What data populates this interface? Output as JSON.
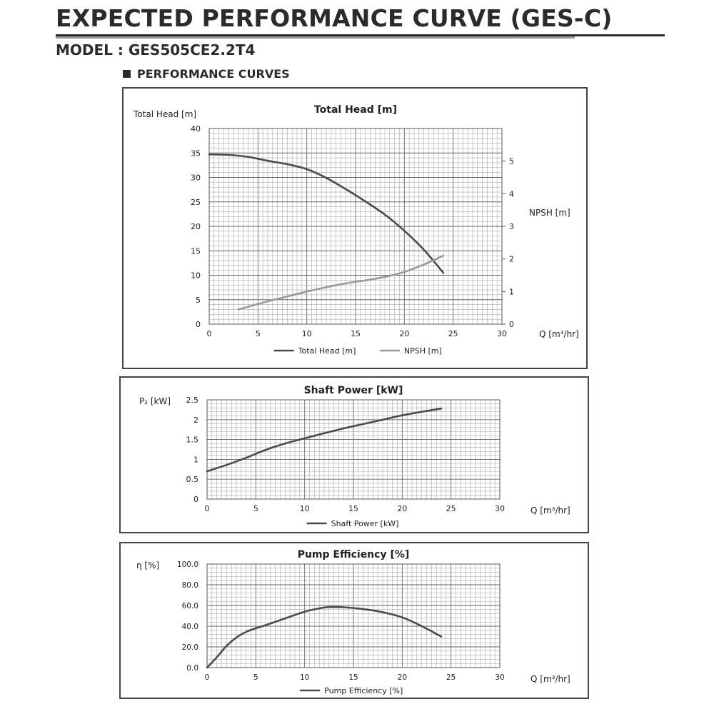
{
  "header": {
    "title": "EXPECTED PERFORMANCE CURVE (GES-C)",
    "model": "MODEL : GES505CE2.2T4",
    "section": "PERFORMANCE CURVES"
  },
  "colors": {
    "primary_curve": "#4a4a4a",
    "secondary_curve": "#999999",
    "grid": "#8a8a8a",
    "border": "#444444"
  },
  "chart_data": [
    {
      "type": "line",
      "title": "Total Head [m]",
      "ylabel": "Total Head [m]",
      "y2label": "NPSH [m]",
      "xlabel": "Q [m³/hr]",
      "xlim": [
        0,
        30
      ],
      "ylim": [
        0,
        40
      ],
      "y2lim": [
        0,
        6
      ],
      "x_ticks": [
        "0",
        "5",
        "10",
        "15",
        "20",
        "25",
        "30"
      ],
      "y_ticks": [
        "0",
        "5",
        "10",
        "15",
        "20",
        "25",
        "30",
        "35",
        "40"
      ],
      "y2_ticks": [
        "0",
        "1",
        "2",
        "3",
        "4",
        "5"
      ],
      "grid": true,
      "legend": "bottom-center",
      "series": [
        {
          "name": "Total Head [m]",
          "axis": "left",
          "color": "#4a4a4a",
          "points": [
            [
              0,
              34.7
            ],
            [
              2,
              34.6
            ],
            [
              4,
              34.2
            ],
            [
              6,
              33.4
            ],
            [
              8,
              32.7
            ],
            [
              10,
              31.7
            ],
            [
              12,
              29.9
            ],
            [
              14,
              27.6
            ],
            [
              16,
              25.1
            ],
            [
              18,
              22.4
            ],
            [
              20,
              19.1
            ],
            [
              22,
              15.2
            ],
            [
              24,
              10.5
            ]
          ]
        },
        {
          "name": "NPSH [m]",
          "axis": "right",
          "color": "#999999",
          "points": [
            [
              3,
              0.45
            ],
            [
              5,
              0.62
            ],
            [
              8,
              0.85
            ],
            [
              10,
              1.0
            ],
            [
              12,
              1.13
            ],
            [
              14,
              1.25
            ],
            [
              16,
              1.34
            ],
            [
              18,
              1.45
            ],
            [
              20,
              1.6
            ],
            [
              22,
              1.83
            ],
            [
              24,
              2.1
            ]
          ]
        }
      ]
    },
    {
      "type": "line",
      "title": "Shaft Power [kW]",
      "ylabel": "P₂ [kW]",
      "xlabel": "Q [m³/hr]",
      "xlim": [
        0,
        30
      ],
      "ylim": [
        0,
        2.5
      ],
      "x_ticks": [
        "0",
        "5",
        "10",
        "15",
        "20",
        "25",
        "30"
      ],
      "y_ticks": [
        "0",
        "0.5",
        "1",
        "1.5",
        "2",
        "2.5"
      ],
      "grid": true,
      "legend": "bottom-center",
      "series": [
        {
          "name": "Shaft Power [kW]",
          "color": "#4a4a4a",
          "points": [
            [
              0,
              0.7
            ],
            [
              2,
              0.86
            ],
            [
              4,
              1.04
            ],
            [
              6,
              1.24
            ],
            [
              8,
              1.4
            ],
            [
              10,
              1.53
            ],
            [
              12,
              1.66
            ],
            [
              14,
              1.78
            ],
            [
              16,
              1.89
            ],
            [
              18,
              2.0
            ],
            [
              20,
              2.11
            ],
            [
              22,
              2.2
            ],
            [
              24,
              2.28
            ]
          ]
        }
      ]
    },
    {
      "type": "line",
      "title": "Pump Efficiency [%]",
      "ylabel": "η [%]",
      "xlabel": "Q [m³/hr]",
      "xlim": [
        0,
        30
      ],
      "ylim": [
        0,
        100
      ],
      "x_ticks": [
        "0",
        "5",
        "10",
        "15",
        "20",
        "25",
        "30"
      ],
      "y_ticks": [
        "0.0",
        "20.0",
        "40.0",
        "60.0",
        "80.0",
        "100.0"
      ],
      "grid": true,
      "legend": "bottom-center",
      "series": [
        {
          "name": "Pump Efficiency [%]",
          "color": "#4a4a4a",
          "points": [
            [
              0,
              0
            ],
            [
              1,
              10
            ],
            [
              2,
              21
            ],
            [
              3,
              29
            ],
            [
              4,
              34.5
            ],
            [
              5,
              38
            ],
            [
              6,
              41
            ],
            [
              8,
              47.5
            ],
            [
              10,
              54
            ],
            [
              12,
              58
            ],
            [
              13,
              58.5
            ],
            [
              14,
              58.3
            ],
            [
              16,
              56.5
            ],
            [
              18,
              53.5
            ],
            [
              20,
              48.5
            ],
            [
              22,
              40
            ],
            [
              24,
              30
            ]
          ]
        }
      ]
    }
  ]
}
